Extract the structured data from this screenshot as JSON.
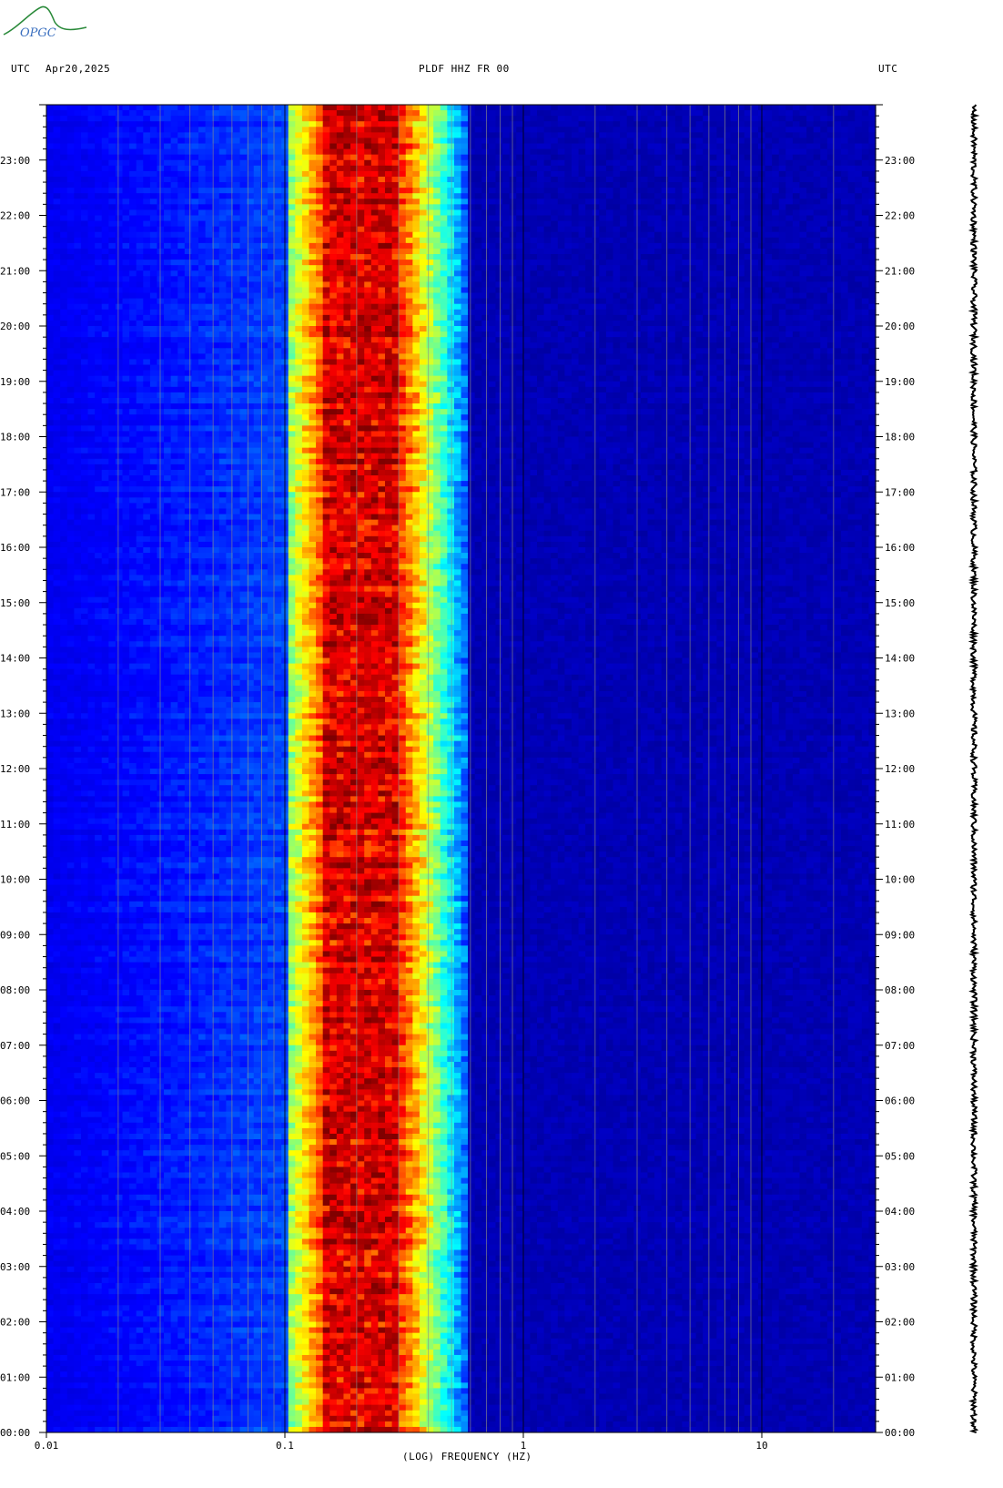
{
  "header": {
    "utc_left": "UTC",
    "date": "Apr20,2025",
    "station": "PLDF HHZ FR 00",
    "utc_right": "UTC"
  },
  "logo": {
    "text": "OPGC",
    "icon": "opgc-volcano-logo"
  },
  "chart_data": {
    "type": "heatmap",
    "title": "PLDF HHZ FR 00",
    "xlabel": "(LOG) FREQUENCY (HZ)",
    "x_scale": "log",
    "xlim": [
      0.01,
      30
    ],
    "x_ticks": [
      {
        "value": 0.01,
        "label": "0.01"
      },
      {
        "value": 0.1,
        "label": "0.1"
      },
      {
        "value": 1,
        "label": "1"
      },
      {
        "value": 10,
        "label": "10"
      }
    ],
    "y_unit": "UTC hour",
    "ylim": [
      0,
      24
    ],
    "y_ticks": [
      "00:00",
      "01:00",
      "02:00",
      "03:00",
      "04:00",
      "05:00",
      "06:00",
      "07:00",
      "08:00",
      "09:00",
      "10:00",
      "11:00",
      "12:00",
      "13:00",
      "14:00",
      "15:00",
      "16:00",
      "17:00",
      "18:00",
      "19:00",
      "20:00",
      "21:00",
      "22:00",
      "23:00"
    ],
    "colormap": [
      "#00007f",
      "#0000ff",
      "#00ffff",
      "#ffff00",
      "#ff0000",
      "#7f0000"
    ],
    "spectral_peak_hz": [
      0.14,
      0.3
    ],
    "energy_band_hz": [
      0.1,
      0.6
    ],
    "background_color": "#0a20a8",
    "trace_color": "#000000"
  }
}
